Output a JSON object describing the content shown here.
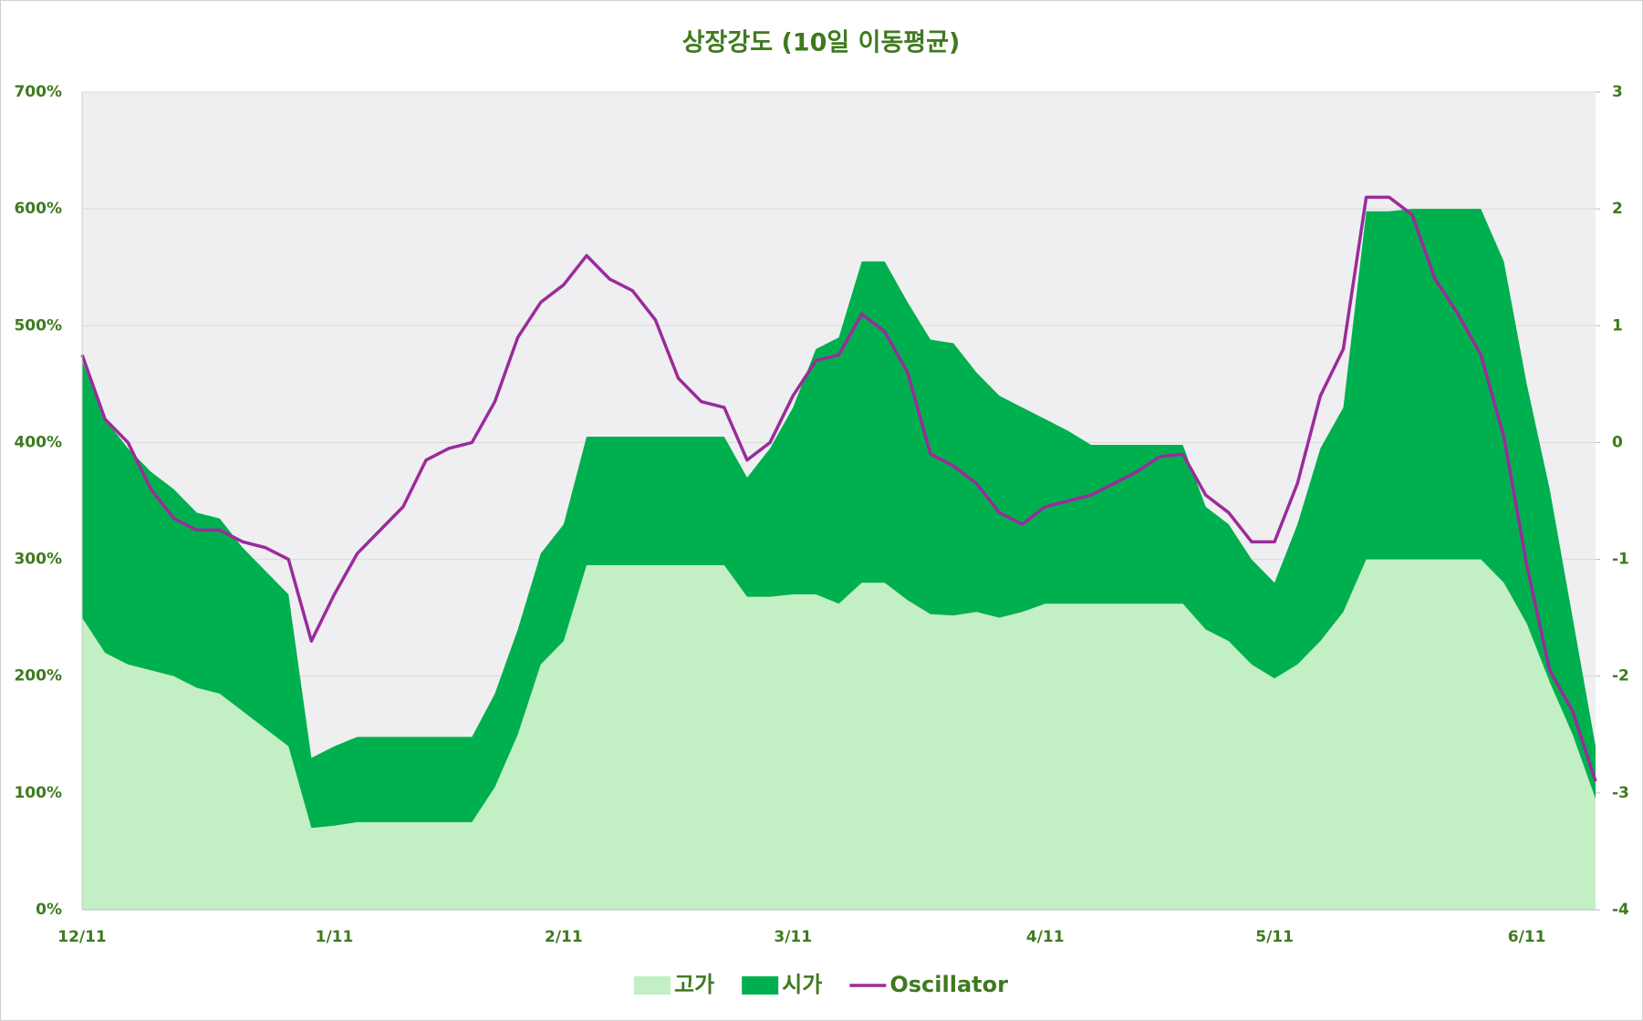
{
  "chart_data": {
    "type": "area-line",
    "title": "상장강도 (10일 이동평균)",
    "categories": [
      "12/11",
      null,
      null,
      null,
      null,
      null,
      null,
      null,
      null,
      null,
      null,
      "1/11",
      null,
      null,
      null,
      null,
      null,
      null,
      null,
      null,
      null,
      "2/11",
      null,
      null,
      null,
      null,
      null,
      null,
      null,
      null,
      null,
      "3/11",
      null,
      null,
      null,
      null,
      null,
      null,
      null,
      null,
      null,
      null,
      "4/11",
      null,
      null,
      null,
      null,
      null,
      null,
      null,
      null,
      null,
      "5/11",
      null,
      null,
      null,
      null,
      null,
      null,
      null,
      null,
      null,
      null,
      "6/11",
      null,
      null,
      null
    ],
    "series": [
      {
        "name": "시가",
        "color": "#00b04f",
        "axis": "y",
        "values": [
          470,
          420,
          395,
          375,
          360,
          340,
          335,
          310,
          290,
          270,
          130,
          140,
          148,
          148,
          148,
          148,
          148,
          148,
          185,
          240,
          305,
          330,
          405,
          405,
          405,
          405,
          405,
          405,
          405,
          370,
          395,
          430,
          480,
          490,
          555,
          555,
          520,
          488,
          485,
          460,
          440,
          430,
          420,
          410,
          398,
          398,
          398,
          398,
          398,
          345,
          330,
          300,
          280,
          330,
          395,
          430,
          598,
          598,
          600,
          600,
          600,
          600,
          555,
          450,
          360,
          250,
          140
        ]
      },
      {
        "name": "고가",
        "color": "#c3efc5",
        "axis": "y",
        "values": [
          250,
          220,
          210,
          205,
          200,
          190,
          185,
          170,
          155,
          140,
          70,
          72,
          75,
          75,
          75,
          75,
          75,
          75,
          105,
          150,
          210,
          230,
          295,
          295,
          295,
          295,
          295,
          295,
          295,
          268,
          268,
          270,
          270,
          262,
          280,
          280,
          265,
          253,
          252,
          255,
          250,
          255,
          262,
          262,
          262,
          262,
          262,
          262,
          262,
          240,
          230,
          210,
          198,
          210,
          230,
          255,
          300,
          300,
          300,
          300,
          300,
          300,
          280,
          245,
          195,
          150,
          95
        ]
      },
      {
        "name": "Oscillator",
        "color": "#9b2b9b",
        "axis": "y2",
        "values": [
          0.75,
          0.2,
          0.0,
          -0.4,
          -0.65,
          -0.75,
          -0.75,
          -0.85,
          -0.9,
          -1.0,
          -1.7,
          -1.3,
          -0.95,
          -0.75,
          -0.55,
          -0.15,
          -0.05,
          0.0,
          0.35,
          0.9,
          1.2,
          1.35,
          1.6,
          1.4,
          1.3,
          1.05,
          0.55,
          0.35,
          0.3,
          -0.15,
          0.0,
          0.4,
          0.7,
          0.75,
          1.1,
          0.95,
          0.6,
          -0.1,
          -0.2,
          -0.35,
          -0.6,
          -0.7,
          -0.55,
          -0.5,
          -0.45,
          -0.35,
          -0.25,
          -0.12,
          -0.1,
          -0.45,
          -0.6,
          -0.85,
          -0.85,
          -0.35,
          0.4,
          0.8,
          2.1,
          2.1,
          1.95,
          1.4,
          1.1,
          0.75,
          0.05,
          -1.05,
          -1.95,
          -2.3,
          -2.9
        ]
      }
    ],
    "ylim": [
      0,
      700
    ],
    "yticks": [
      {
        "value": 0,
        "label": "0%"
      },
      {
        "value": 100,
        "label": "100%"
      },
      {
        "value": 200,
        "label": "200%"
      },
      {
        "value": 300,
        "label": "300%"
      },
      {
        "value": 400,
        "label": "400%"
      },
      {
        "value": 500,
        "label": "500%"
      },
      {
        "value": 600,
        "label": "600%"
      },
      {
        "value": 700,
        "label": "700%"
      }
    ],
    "y2lim": [
      -4,
      3
    ],
    "y2ticks": [
      -4,
      -3,
      -2,
      -1,
      0,
      1,
      2,
      3
    ],
    "legend": "bottom",
    "grid": true
  }
}
